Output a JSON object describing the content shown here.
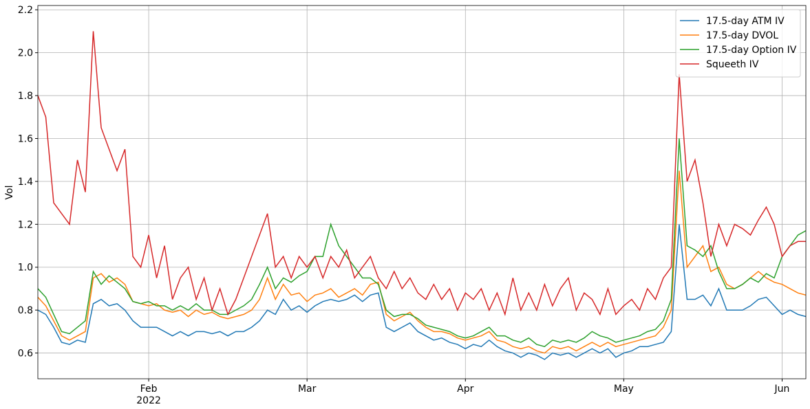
{
  "chart_data": {
    "type": "line",
    "ylabel": "Vol",
    "x": [
      1.3,
      1.35,
      1.4,
      1.45,
      1.5,
      1.55,
      1.6,
      1.65,
      1.7,
      1.75,
      1.8,
      1.85,
      1.9,
      1.95,
      2,
      2.05,
      2.1,
      2.15,
      2.2,
      2.25,
      2.3,
      2.35,
      2.4,
      2.45,
      2.5,
      2.55,
      2.6,
      2.65,
      2.7,
      2.75,
      2.8,
      2.85,
      2.9,
      2.95,
      3,
      3.05,
      3.1,
      3.15,
      3.2,
      3.25,
      3.3,
      3.35,
      3.4,
      3.45,
      3.5,
      3.55,
      3.6,
      3.65,
      3.7,
      3.75,
      3.8,
      3.85,
      3.9,
      3.95,
      4,
      4.05,
      4.1,
      4.15,
      4.2,
      4.25,
      4.3,
      4.35,
      4.4,
      4.45,
      4.5,
      4.55,
      4.6,
      4.65,
      4.7,
      4.75,
      4.8,
      4.85,
      4.9,
      4.95,
      5,
      5.05,
      5.1,
      5.15,
      5.2,
      5.25,
      5.3,
      5.35,
      5.4,
      5.45,
      5.5,
      5.55,
      5.6,
      5.65,
      5.7,
      5.75,
      5.8,
      5.85,
      5.9,
      5.95,
      6,
      6.05,
      6.1,
      6.15
    ],
    "xlim": [
      1.3,
      6.15
    ],
    "xticks": [
      {
        "value": 2,
        "label": "Feb\n2022"
      },
      {
        "value": 3,
        "label": "Mar"
      },
      {
        "value": 4,
        "label": "Apr"
      },
      {
        "value": 5,
        "label": "May"
      },
      {
        "value": 6,
        "label": "Jun"
      }
    ],
    "ylim": [
      0.48,
      2.22
    ],
    "yticks": [
      0.6,
      0.8,
      {
        "value": 1,
        "label": "1.0"
      },
      1.2,
      1.4,
      1.6,
      1.8,
      {
        "value": 2,
        "label": "2.0"
      },
      2.2
    ],
    "grid": true,
    "legend": "upper right",
    "series": [
      {
        "name": "17.5-day ATM IV",
        "color": "#1f77b4",
        "values": [
          0.8,
          0.78,
          0.72,
          0.65,
          0.64,
          0.66,
          0.65,
          0.83,
          0.85,
          0.82,
          0.83,
          0.8,
          0.75,
          0.72,
          0.72,
          0.72,
          0.7,
          0.68,
          0.7,
          0.68,
          0.7,
          0.7,
          0.69,
          0.7,
          0.68,
          0.7,
          0.7,
          0.72,
          0.75,
          0.8,
          0.78,
          0.85,
          0.8,
          0.82,
          0.79,
          0.82,
          0.84,
          0.85,
          0.84,
          0.85,
          0.87,
          0.84,
          0.87,
          0.88,
          0.72,
          0.7,
          0.72,
          0.74,
          0.7,
          0.68,
          0.66,
          0.67,
          0.65,
          0.64,
          0.62,
          0.64,
          0.63,
          0.66,
          0.63,
          0.61,
          0.6,
          0.58,
          0.6,
          0.59,
          0.57,
          0.6,
          0.59,
          0.6,
          0.58,
          0.6,
          0.62,
          0.6,
          0.62,
          0.58,
          0.6,
          0.61,
          0.63,
          0.63,
          0.64,
          0.65,
          0.7,
          1.2,
          0.85,
          0.85,
          0.87,
          0.82,
          0.9,
          0.8,
          0.8,
          0.8,
          0.82,
          0.85,
          0.86,
          0.82,
          0.78,
          0.8,
          0.78,
          0.77
        ]
      },
      {
        "name": "17.5-day DVOL",
        "color": "#ff7f0e",
        "values": [
          0.86,
          0.82,
          0.75,
          0.68,
          0.66,
          0.68,
          0.7,
          0.95,
          0.97,
          0.93,
          0.95,
          0.92,
          0.84,
          0.83,
          0.82,
          0.83,
          0.8,
          0.79,
          0.8,
          0.77,
          0.8,
          0.78,
          0.79,
          0.77,
          0.76,
          0.77,
          0.78,
          0.8,
          0.85,
          0.95,
          0.85,
          0.92,
          0.87,
          0.88,
          0.84,
          0.87,
          0.88,
          0.9,
          0.86,
          0.88,
          0.9,
          0.87,
          0.92,
          0.93,
          0.78,
          0.75,
          0.77,
          0.79,
          0.75,
          0.72,
          0.7,
          0.7,
          0.69,
          0.67,
          0.66,
          0.67,
          0.68,
          0.7,
          0.66,
          0.65,
          0.63,
          0.62,
          0.63,
          0.61,
          0.6,
          0.63,
          0.62,
          0.63,
          0.61,
          0.63,
          0.65,
          0.63,
          0.65,
          0.63,
          0.64,
          0.65,
          0.66,
          0.67,
          0.68,
          0.72,
          0.8,
          1.45,
          1.0,
          1.05,
          1.1,
          0.98,
          1.0,
          0.92,
          0.9,
          0.92,
          0.95,
          0.98,
          0.95,
          0.93,
          0.92,
          0.9,
          0.88,
          0.87
        ]
      },
      {
        "name": "17.5-day Option IV",
        "color": "#2ca02c",
        "values": [
          0.9,
          0.86,
          0.78,
          0.7,
          0.69,
          0.72,
          0.75,
          0.98,
          0.92,
          0.96,
          0.93,
          0.9,
          0.84,
          0.83,
          0.84,
          0.82,
          0.82,
          0.8,
          0.82,
          0.8,
          0.83,
          0.8,
          0.8,
          0.78,
          0.78,
          0.8,
          0.82,
          0.85,
          0.92,
          1.0,
          0.9,
          0.95,
          0.93,
          0.96,
          0.98,
          1.05,
          1.05,
          1.2,
          1.1,
          1.05,
          1.0,
          0.95,
          0.95,
          0.92,
          0.8,
          0.77,
          0.78,
          0.78,
          0.76,
          0.73,
          0.72,
          0.71,
          0.7,
          0.68,
          0.67,
          0.68,
          0.7,
          0.72,
          0.68,
          0.68,
          0.66,
          0.65,
          0.67,
          0.64,
          0.63,
          0.66,
          0.65,
          0.66,
          0.65,
          0.67,
          0.7,
          0.68,
          0.67,
          0.65,
          0.66,
          0.67,
          0.68,
          0.7,
          0.71,
          0.75,
          0.85,
          1.6,
          1.1,
          1.08,
          1.05,
          1.1,
          0.98,
          0.9,
          0.9,
          0.92,
          0.95,
          0.93,
          0.97,
          0.95,
          1.05,
          1.1,
          1.15,
          1.17
        ]
      },
      {
        "name": "Squeeth IV",
        "color": "#d62728",
        "values": [
          1.8,
          1.7,
          1.3,
          1.25,
          1.2,
          1.5,
          1.35,
          2.1,
          1.65,
          1.55,
          1.45,
          1.55,
          1.05,
          1.0,
          1.15,
          0.95,
          1.1,
          0.85,
          0.95,
          1.0,
          0.85,
          0.95,
          0.8,
          0.9,
          0.78,
          0.85,
          0.95,
          1.05,
          1.15,
          1.25,
          1.0,
          1.05,
          0.95,
          1.05,
          1.0,
          1.05,
          0.95,
          1.05,
          1.0,
          1.08,
          0.95,
          1.0,
          1.05,
          0.95,
          0.9,
          0.98,
          0.9,
          0.95,
          0.88,
          0.85,
          0.92,
          0.85,
          0.9,
          0.8,
          0.88,
          0.85,
          0.9,
          0.8,
          0.88,
          0.78,
          0.95,
          0.8,
          0.88,
          0.8,
          0.92,
          0.82,
          0.9,
          0.95,
          0.8,
          0.88,
          0.85,
          0.78,
          0.9,
          0.78,
          0.82,
          0.85,
          0.8,
          0.9,
          0.85,
          0.95,
          1.0,
          1.9,
          1.4,
          1.5,
          1.3,
          1.05,
          1.2,
          1.1,
          1.2,
          1.18,
          1.15,
          1.22,
          1.28,
          1.2,
          1.05,
          1.1,
          1.12,
          1.12
        ]
      }
    ]
  }
}
